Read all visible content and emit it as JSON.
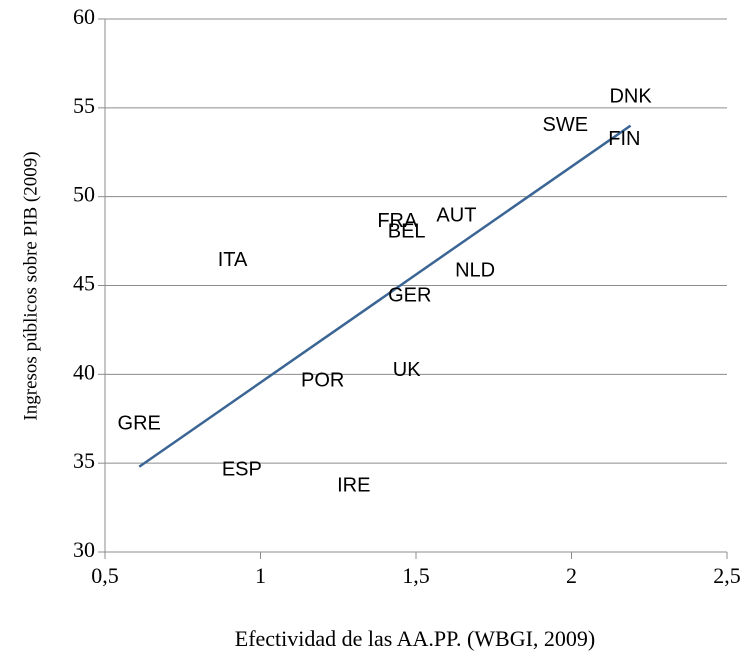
{
  "chart_data": {
    "type": "scatter",
    "x_label": "Efectividad de las AA.PP. (WBGI, 2009)",
    "y_label": "Ingresos públicos sobre PIB (2009)",
    "labels": [
      "DNK",
      "SWE",
      "FIN",
      "FRA",
      "BEL",
      "AUT",
      "ITA",
      "NLD",
      "GER",
      "UK",
      "POR",
      "GRE",
      "ESP",
      "IRE"
    ],
    "x": [
      2.19,
      1.98,
      2.17,
      1.44,
      1.47,
      1.63,
      0.91,
      1.69,
      1.48,
      1.47,
      1.2,
      0.61,
      0.94,
      1.3
    ],
    "y": [
      55.6,
      54.0,
      53.2,
      48.6,
      48.0,
      48.9,
      46.4,
      45.8,
      44.4,
      40.2,
      39.6,
      37.2,
      34.6,
      33.7
    ],
    "trendline": {
      "x": [
        0.61,
        2.19
      ],
      "y": [
        34.8,
        54.0
      ],
      "color": "#3a6595"
    },
    "xlim": [
      0.5,
      2.5
    ],
    "xticks": [
      {
        "value": 0.5,
        "label": "0,5"
      },
      1,
      {
        "value": 1.5,
        "label": "1,5"
      },
      2,
      {
        "value": 2.5,
        "label": "2,5"
      }
    ],
    "ylim": [
      30,
      60
    ],
    "yticks": [
      30,
      35,
      40,
      45,
      50,
      55,
      60
    ],
    "grid": true
  }
}
